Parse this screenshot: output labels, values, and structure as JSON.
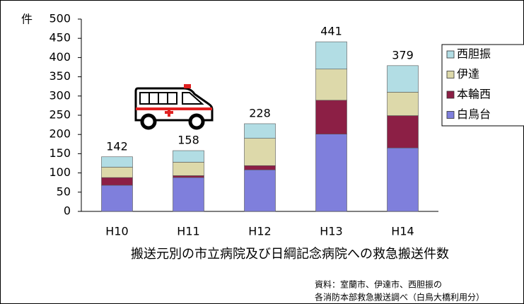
{
  "chart_data": {
    "type": "stacked_bar",
    "unit_label": "件",
    "title": "搬送元別の市立病院及び日綱記念病院への救急搬送件数",
    "source": [
      "資料：室蘭市、伊達市、西胆振の",
      "各消防本部救急搬送調べ（白鳥大橋利用分）"
    ],
    "categories": [
      "H10",
      "H11",
      "H12",
      "H13",
      "H14"
    ],
    "series": [
      {
        "name": "白鳥台",
        "color": "#7f7fdc",
        "values": [
          68,
          88,
          108,
          201,
          165
        ]
      },
      {
        "name": "本輪西",
        "color": "#8c1f45",
        "values": [
          20,
          5,
          11,
          88,
          84
        ]
      },
      {
        "name": "伊達",
        "color": "#ddd9aa",
        "values": [
          27,
          35,
          71,
          81,
          61
        ]
      },
      {
        "name": "西胆振",
        "color": "#b2dde4",
        "values": [
          27,
          30,
          38,
          71,
          69
        ]
      }
    ],
    "totals": [
      142,
      158,
      228,
      441,
      379
    ],
    "ylim": [
      0,
      500
    ],
    "yticks": [
      0,
      50,
      100,
      150,
      200,
      250,
      300,
      350,
      400,
      450,
      500
    ]
  }
}
